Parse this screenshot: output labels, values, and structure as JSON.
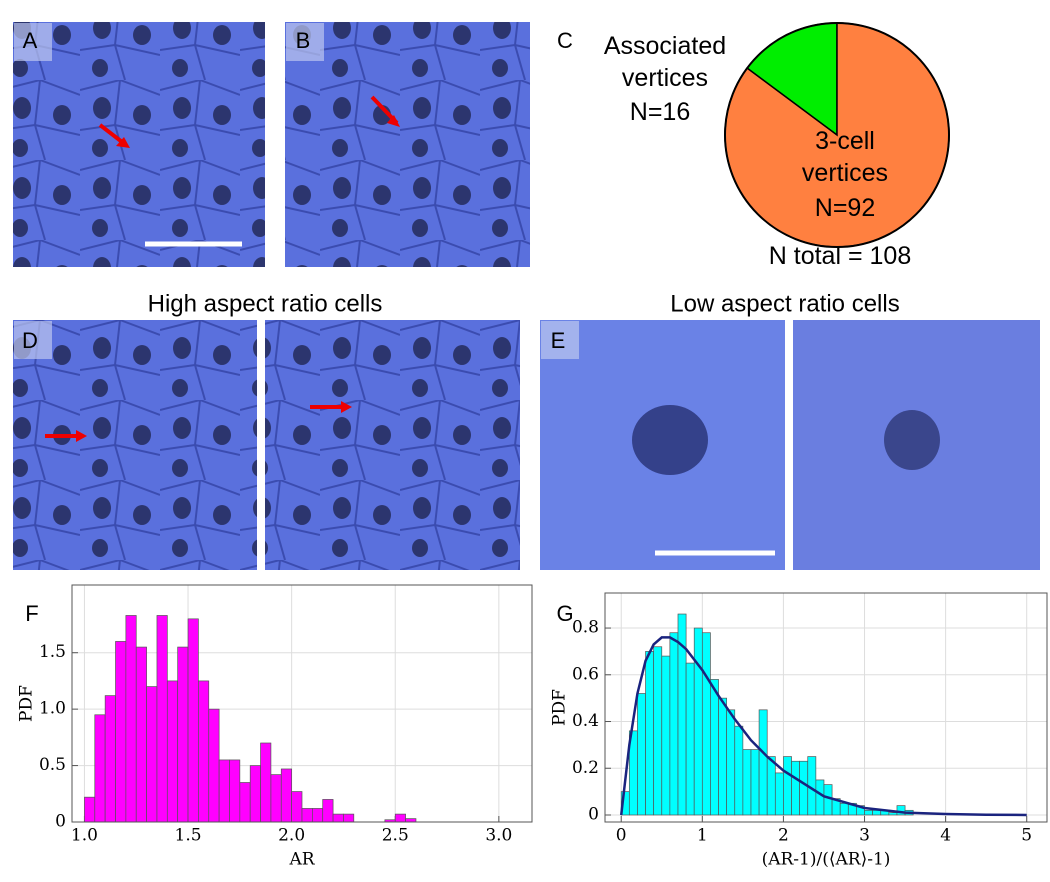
{
  "panels": {
    "labels": [
      "A",
      "B",
      "C",
      "D",
      "E",
      "F",
      "G"
    ],
    "titles": [
      "High aspect ratio cells",
      "Low aspect ratio cells"
    ]
  },
  "chart_data": [
    {
      "type": "pie",
      "labels": [
        "Associated vertices",
        "3-cell vertices"
      ],
      "values": [
        16,
        92
      ],
      "value_labels": [
        "N=16",
        "N=92"
      ],
      "colors": [
        "#00ee00",
        "#ff8040"
      ],
      "annotation": "N total = 108"
    },
    {
      "type": "histogram",
      "xlabel": "AR",
      "ylabel": "PDF",
      "color": "#ff00ff",
      "bins": [
        1.0,
        1.05,
        1.1,
        1.15,
        1.2,
        1.25,
        1.3,
        1.35,
        1.4,
        1.45,
        1.5,
        1.55,
        1.6,
        1.65,
        1.7,
        1.75,
        1.8,
        1.85,
        1.9,
        1.95,
        2.0,
        2.05,
        2.1,
        2.15,
        2.2,
        2.25,
        2.3,
        2.35,
        2.4,
        2.45,
        2.5,
        2.55,
        2.6,
        2.65
      ],
      "values": [
        0.22,
        0.95,
        1.12,
        1.6,
        1.83,
        1.55,
        1.2,
        1.83,
        1.25,
        1.55,
        1.8,
        1.25,
        1.0,
        0.55,
        0.55,
        0.35,
        0.5,
        0.7,
        0.42,
        0.47,
        0.27,
        0.12,
        0.12,
        0.2,
        0.07,
        0.07,
        0,
        0,
        0,
        0.02,
        0.07,
        0.03,
        0
      ],
      "xlim": [
        0.94,
        3.16
      ],
      "ylim": [
        0,
        2.1
      ],
      "xticks": [
        {
          "value": 1,
          "label": "1.0"
        },
        1.5,
        {
          "value": 2,
          "label": "2.0"
        },
        2.5,
        {
          "value": 3,
          "label": "3.0"
        }
      ],
      "yticks": [
        0,
        0.5,
        {
          "value": 1,
          "label": "1.0"
        },
        1.5
      ],
      "grid": true
    },
    {
      "type": "histogram",
      "xlabel": "(AR-1)/(⟨AR⟩-1)",
      "ylabel": "PDF",
      "color": "#00ffff",
      "bins": [
        0,
        0.1,
        0.2,
        0.3,
        0.4,
        0.5,
        0.6,
        0.7,
        0.8,
        0.9,
        1.0,
        1.1,
        1.2,
        1.3,
        1.4,
        1.5,
        1.6,
        1.7,
        1.8,
        1.9,
        2.0,
        2.1,
        2.2,
        2.3,
        2.4,
        2.5,
        2.6,
        2.7,
        2.8,
        2.9,
        3.0,
        3.1,
        3.2,
        3.3,
        3.4,
        3.5,
        3.6
      ],
      "values": [
        0.1,
        0.36,
        0.52,
        0.7,
        0.72,
        0.68,
        0.78,
        0.86,
        0.65,
        0.8,
        0.78,
        0.58,
        0.5,
        0.45,
        0.38,
        0.28,
        0.28,
        0.45,
        0.25,
        0.18,
        0.25,
        0.23,
        0.23,
        0.25,
        0.15,
        0.13,
        0.07,
        0.05,
        0.05,
        0.04,
        0.02,
        0.02,
        0.02,
        0.01,
        0.04,
        0.02
      ],
      "fit": {
        "color": "#1a237e",
        "x": [
          0,
          0.1,
          0.2,
          0.3,
          0.4,
          0.5,
          0.6,
          0.7,
          0.8,
          1.0,
          1.2,
          1.4,
          1.6,
          1.8,
          2.0,
          2.5,
          3,
          3.5,
          4,
          4.5,
          5
        ],
        "values": [
          0,
          0.3,
          0.52,
          0.66,
          0.73,
          0.76,
          0.76,
          0.74,
          0.71,
          0.62,
          0.51,
          0.41,
          0.32,
          0.25,
          0.19,
          0.08,
          0.03,
          0.01,
          0.004,
          0.001,
          0
        ]
      },
      "xlim": [
        -0.2,
        5.25
      ],
      "ylim": [
        -0.03,
        0.95
      ],
      "xticks": [
        0,
        1,
        2,
        3,
        4,
        5
      ],
      "yticks": [
        0,
        0.2,
        0.4,
        0.6,
        0.8
      ],
      "grid": true
    }
  ]
}
